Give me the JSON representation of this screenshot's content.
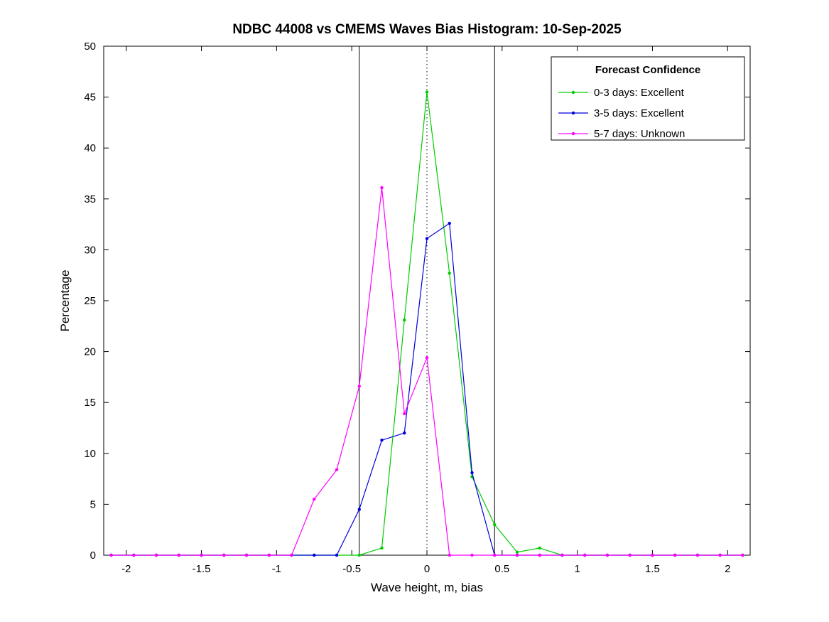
{
  "chart_data": {
    "type": "line",
    "title": "NDBC 44008 vs CMEMS Waves Bias Histogram: 10-Sep-2025",
    "xlabel": "Wave height, m, bias",
    "ylabel": "Percentage",
    "xlim": [
      -2.15,
      2.15
    ],
    "ylim": [
      0,
      50
    ],
    "grid": false,
    "xticks": [
      -2,
      -1.5,
      -1,
      -0.5,
      0,
      0.5,
      1,
      1.5,
      2
    ],
    "xtick_labels": [
      "-2",
      "-1.5",
      "-1",
      "-0.5",
      "0",
      "0.5",
      "1",
      "1.5",
      "2"
    ],
    "yticks": [
      0,
      5,
      10,
      15,
      20,
      25,
      30,
      35,
      40,
      45,
      50
    ],
    "ytick_labels": [
      "0",
      "5",
      "10",
      "15",
      "20",
      "25",
      "30",
      "35",
      "40",
      "45",
      "50"
    ],
    "x": [
      -2.1,
      -1.95,
      -1.8,
      -1.65,
      -1.5,
      -1.35,
      -1.2,
      -1.05,
      -0.9,
      -0.75,
      -0.6,
      -0.45,
      -0.3,
      -0.15,
      0,
      0.15,
      0.3,
      0.45,
      0.6,
      0.75,
      0.9,
      1.05,
      1.2,
      1.35,
      1.5,
      1.65,
      1.8,
      1.95,
      2.1
    ],
    "series": [
      {
        "name": "0-3 days: Excellent",
        "color": "#00cc00",
        "values": [
          0,
          0,
          0,
          0,
          0,
          0,
          0,
          0,
          0,
          0,
          0,
          0,
          0.7,
          23.1,
          45.5,
          27.7,
          7.7,
          3.0,
          0.3,
          0.7,
          0,
          0,
          0,
          0,
          0,
          0,
          0,
          0,
          0
        ]
      },
      {
        "name": "3-5 days: Excellent",
        "color": "#0000dd",
        "values": [
          0,
          0,
          0,
          0,
          0,
          0,
          0,
          0,
          0,
          0,
          0,
          4.5,
          11.3,
          12.0,
          31.1,
          32.6,
          8.1,
          0,
          0,
          0,
          0,
          0,
          0,
          0,
          0,
          0,
          0,
          0,
          0
        ]
      },
      {
        "name": "5-7 days: Unknown",
        "color": "#ff00ff",
        "values": [
          0,
          0,
          0,
          0,
          0,
          0,
          0,
          0,
          0,
          5.5,
          8.4,
          16.6,
          36.1,
          13.9,
          19.4,
          0,
          0,
          0,
          0,
          0,
          0,
          0,
          0,
          0,
          0,
          0,
          0,
          0,
          0
        ]
      }
    ],
    "vlines": [
      {
        "x": -0.45,
        "style": "solid"
      },
      {
        "x": 0.45,
        "style": "solid"
      },
      {
        "x": 0,
        "style": "dotted"
      }
    ],
    "legend": {
      "title": "Forecast Confidence",
      "position": "top-right"
    }
  }
}
